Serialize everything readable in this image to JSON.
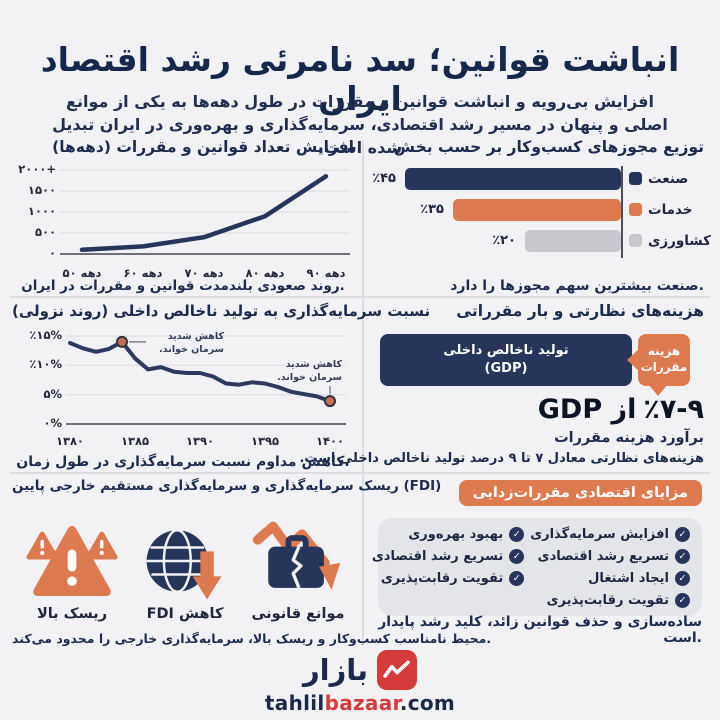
{
  "colors": {
    "background": "#f2f2f4",
    "navy": "#27355b",
    "orange": "#dd7a50",
    "gray_bar": "#c6c8cd",
    "gray_box": "#e3e5e9",
    "title_navy": "#16274a",
    "logo_red": "#d63b3b",
    "dot_fill": "#c77058"
  },
  "header": {
    "title": "انباشت قوانین؛ سد نامرئی رشد اقتصاد ایران",
    "subtitle": "افزایش بی‌رویه و انباشت قوانین و مقررات در طول دهه‌ها به یکی از موانع اصلی و پنهان در مسیر رشد اقتصادی، سرمایه‌گذاری و بهره‌وری در ایران تبدیل شده است."
  },
  "sections": {
    "cost": {
      "title": "هزینه‌های نظارتی و بار مقرراتی",
      "gdp_line1": "تولید ناخالص داخلی",
      "gdp_line2": "(GDP)",
      "badge_line1": "هزینه",
      "badge_line2": "مقررات",
      "big_value": "٪۷-۹",
      "big_rest": "از GDP",
      "estimate": "برآورد هزینه مقررات",
      "description": "هزینه‌های نظارتی معادل ۷ تا ۹ درصد تولید ناخالص داخلی است."
    },
    "fdi": {
      "title": "ریسک سرمایه‌گذاری و سرمایه‌گذاری مستقیم خارجی پایین (FDI)",
      "items": [
        {
          "icon": "broken-briefcase-down-arrow-icon",
          "label": "موانع قانونی"
        },
        {
          "icon": "globe-down-arrow-icon",
          "label": "کاهش FDI"
        },
        {
          "icon": "warning-triangles-icon",
          "label": "ریسک بالا"
        }
      ],
      "caption": "محیط نامناسب کسب‌وکار و ریسک بالا، سرمایه‌گذاری خارجی را محدود می‌کند."
    },
    "benefits": {
      "pill_label": "مزایای اقتصادی مقررات‌زدایی",
      "check_glyph": "✓",
      "columns": {
        "right": [
          "افزایش سرمایه‌گذاری",
          "تسریع رشد اقتصادی",
          "ایجاد اشتغال",
          "تقویت رقابت‌پذیری"
        ],
        "left": [
          "بهبود بهره‌وری",
          "تسریع رشد اقتصادی",
          "تقویت رقابت‌پذیری"
        ]
      },
      "caption": "ساده‌سازی و حذف قوانین زائد، کلید رشد پایدار است."
    }
  },
  "footer": {
    "brand": "بازار",
    "url_name": "tahlil",
    "url_brand": "bazaar",
    "url_tld": ".com"
  },
  "chart_data": [
    {
      "type": "line",
      "title": "افزایش تعداد قوانین و مقررات (دهه‌ها)",
      "caption": "روند صعودی بلندمدت قوانین و مقررات در ایران.",
      "categories": [
        "دهه ۵۰",
        "دهه ۶۰",
        "دهه ۷۰",
        "دهه ۸۰",
        "دهه ۹۰"
      ],
      "values": [
        100,
        180,
        400,
        900,
        1850
      ],
      "ylim": [
        0,
        2000
      ],
      "y_ticks": [
        {
          "value": 0,
          "label": "۰"
        },
        {
          "value": 500,
          "label": "۵۰۰"
        },
        {
          "value": 1000,
          "label": "۱۰۰۰"
        },
        {
          "value": 1500,
          "label": "۱۵۰۰"
        },
        {
          "value": 2000,
          "label": "۲۰۰۰+"
        }
      ],
      "line_color": "#27355b",
      "grid": true,
      "legend": "none"
    },
    {
      "type": "bar",
      "orientation": "horizontal-rtl",
      "title": "توزیع مجوزهای کسب‌وکار بر حسب بخش",
      "caption": "صنعت بیشترین سهم مجوزها را دارد.",
      "categories": [
        "صنعت",
        "خدمات",
        "کشاورزی"
      ],
      "values": [
        45,
        35,
        20
      ],
      "value_labels": [
        "٪۴۵",
        "٪۳۵",
        "٪۲۰"
      ],
      "colors": [
        "#27355b",
        "#dd7a50",
        "#c6c8cd"
      ],
      "xlim": [
        0,
        45
      ],
      "legend": "swatch-beside-category"
    },
    {
      "type": "line",
      "title": "نسبت سرمایه‌گذاری به تولید ناخالص داخلی (روند نزولی)",
      "caption": "کاهش مداوم نسبت سرمایه‌گذاری در طول زمان.",
      "x_start": 1380,
      "x_end": 1400,
      "x_tick_labels": [
        "۱۳۸۰",
        "۱۳۸۵",
        "۱۳۹۰",
        "۱۳۹۵",
        "۱۴۰۰"
      ],
      "values": [
        13.8,
        12.9,
        12.3,
        12.8,
        14.0,
        11.2,
        9.3,
        9.7,
        8.9,
        8.7,
        8.7,
        8.1,
        6.9,
        6.7,
        7.1,
        6.9,
        6.3,
        5.5,
        5.1,
        4.7,
        3.9
      ],
      "ylim": [
        0,
        15
      ],
      "y_ticks": [
        {
          "value": 0,
          "label": "۰%"
        },
        {
          "value": 5,
          "label": "۵%"
        },
        {
          "value": 10,
          "label": "٪۱۰%"
        },
        {
          "value": 15,
          "label": "٪۱۵%"
        }
      ],
      "annotations": [
        {
          "index": 4,
          "value": 14.0,
          "line1": "کاهش شدید",
          "line2": "سرمان خواند."
        },
        {
          "index": 20,
          "value": 3.9,
          "line1": "کاهش شدید",
          "line2": "سرمان خواند."
        }
      ],
      "line_color": "#2d3a5e",
      "dot_color": "#c77058",
      "grid": true,
      "legend": "none"
    }
  ]
}
